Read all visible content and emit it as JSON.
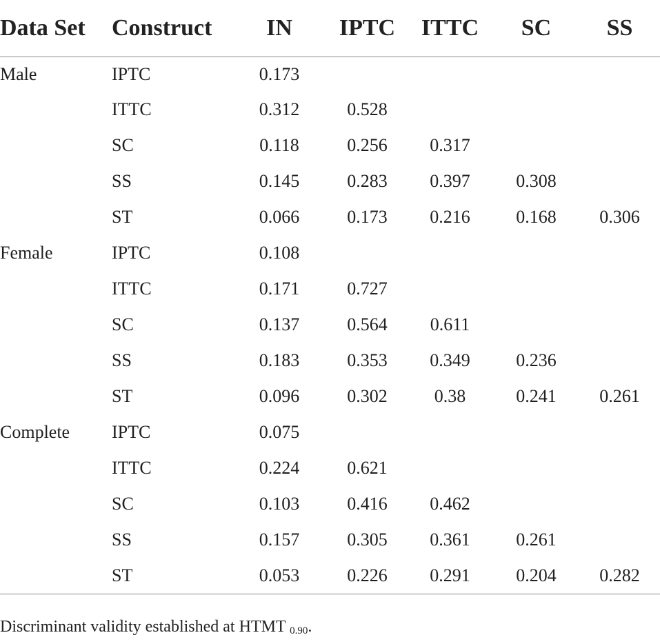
{
  "table": {
    "headers": [
      "Data Set",
      "Construct",
      "IN",
      "IPTC",
      "ITTC",
      "SC",
      "SS"
    ],
    "groups": [
      {
        "name": "Male",
        "rows": [
          {
            "construct": "IPTC",
            "values": [
              "0.173",
              "",
              "",
              "",
              ""
            ]
          },
          {
            "construct": "ITTC",
            "values": [
              "0.312",
              "0.528",
              "",
              "",
              ""
            ]
          },
          {
            "construct": "SC",
            "values": [
              "0.118",
              "0.256",
              "0.317",
              "",
              ""
            ]
          },
          {
            "construct": "SS",
            "values": [
              "0.145",
              "0.283",
              "0.397",
              "0.308",
              ""
            ]
          },
          {
            "construct": "ST",
            "values": [
              "0.066",
              "0.173",
              "0.216",
              "0.168",
              "0.306"
            ]
          }
        ]
      },
      {
        "name": "Female",
        "rows": [
          {
            "construct": "IPTC",
            "values": [
              "0.108",
              "",
              "",
              "",
              ""
            ]
          },
          {
            "construct": "ITTC",
            "values": [
              "0.171",
              "0.727",
              "",
              "",
              ""
            ]
          },
          {
            "construct": "SC",
            "values": [
              "0.137",
              "0.564",
              "0.611",
              "",
              ""
            ]
          },
          {
            "construct": "SS",
            "values": [
              "0.183",
              "0.353",
              "0.349",
              "0.236",
              ""
            ]
          },
          {
            "construct": "ST",
            "values": [
              "0.096",
              "0.302",
              "0.38",
              "0.241",
              "0.261"
            ]
          }
        ]
      },
      {
        "name": "Complete",
        "rows": [
          {
            "construct": "IPTC",
            "values": [
              "0.075",
              "",
              "",
              "",
              ""
            ]
          },
          {
            "construct": "ITTC",
            "values": [
              "0.224",
              "0.621",
              "",
              "",
              ""
            ]
          },
          {
            "construct": "SC",
            "values": [
              "0.103",
              "0.416",
              "0.462",
              "",
              ""
            ]
          },
          {
            "construct": "SS",
            "values": [
              "0.157",
              "0.305",
              "0.361",
              "0.261",
              ""
            ]
          },
          {
            "construct": "ST",
            "values": [
              "0.053",
              "0.226",
              "0.291",
              "0.204",
              "0.282"
            ]
          }
        ]
      }
    ]
  },
  "footnote": {
    "text": "Discriminant validity established at HTMT",
    "subscript": "0.90",
    "end": "."
  }
}
